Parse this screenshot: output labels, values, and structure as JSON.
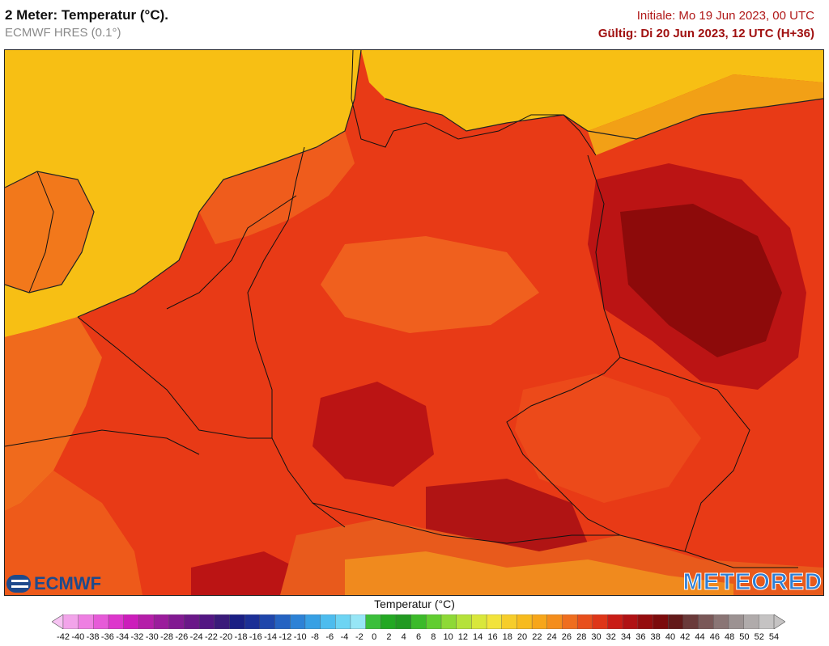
{
  "header": {
    "title": "2 Meter: Temperatur (°C).",
    "model": "ECMWF HRES (0.1°)",
    "initial": "Initiale: Mo 19 Jun 2023, 00 UTC",
    "valid": "Gültig: Di 20 Jun 2023, 12 UTC (H+36)"
  },
  "map": {
    "variable": "2m temperature",
    "region": "Central Europe",
    "warm_colors": {
      "land_base": "#e83a16",
      "hot": "#bb1414",
      "very_hot": "#8d0a0a",
      "mild": "#f05a1c",
      "warm_orange": "#f5861c",
      "sea_yellow": "#f7bf14",
      "sea_orange": "#f6a316"
    }
  },
  "logos": {
    "left": "ECMWF",
    "right": "METEORED"
  },
  "legend": {
    "title": "Temperatur (°C)",
    "ticks": [
      "-42",
      "-40",
      "-38",
      "-36",
      "-34",
      "-32",
      "-30",
      "-28",
      "-26",
      "-24",
      "-22",
      "-20",
      "-18",
      "-16",
      "-14",
      "-12",
      "-10",
      "-8",
      "-6",
      "-4",
      "-2",
      "0",
      "2",
      "4",
      "6",
      "8",
      "10",
      "12",
      "14",
      "16",
      "18",
      "20",
      "22",
      "24",
      "26",
      "28",
      "30",
      "32",
      "34",
      "36",
      "38",
      "40",
      "42",
      "44",
      "46",
      "48",
      "50",
      "52",
      "54"
    ],
    "colors": [
      "#f6c3f2",
      "#f2a4ea",
      "#ee7fe2",
      "#e65ad8",
      "#dd36cc",
      "#cc1dbb",
      "#b51ea9",
      "#9b1c9c",
      "#821a92",
      "#6a1888",
      "#531683",
      "#3a1b7a",
      "#1a1f84",
      "#1c2f96",
      "#1f46ab",
      "#2563c2",
      "#2d82d6",
      "#37a0e4",
      "#4dbcee",
      "#6dd4f3",
      "#97e6f6",
      "#3bbf3b",
      "#23a823",
      "#229a22",
      "#3cba2a",
      "#61cd30",
      "#8ed936",
      "#b5e23a",
      "#d9e73b",
      "#f2e33c",
      "#f6cd2b",
      "#f7bb1e",
      "#f7a61a",
      "#f48d1c",
      "#ef6e1f",
      "#e84f1c",
      "#de3618",
      "#c91d16",
      "#b01214",
      "#950d0e",
      "#7c0b0c",
      "#631a1a",
      "#6a3a3a",
      "#7a5858",
      "#8a7575",
      "#9c9292",
      "#b0abab",
      "#c5c3c3"
    ]
  }
}
